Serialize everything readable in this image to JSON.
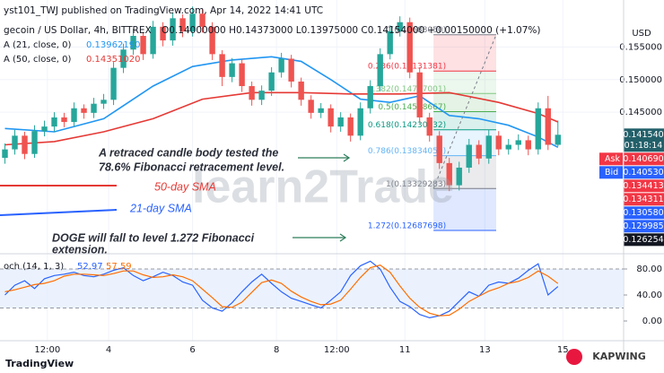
{
  "header": {
    "published": "yst101_TWJ published on TradingView.com, Apr 14, 2022 14:41 UTC",
    "symbol": "gecoin / US Dollar, 4h, BITTREX",
    "ohlc": "O0.14000000  H0.14373000  L0.13975000  C0.14154000  +0.00150000 (+1.07%)"
  },
  "chart_data": [
    {
      "type": "candlestick",
      "axis_unit": "USD",
      "up_color": "#26a69a",
      "down_color": "#ef5350",
      "xlim": [
        -0.5,
        62.2
      ],
      "ylim": [
        0.1233,
        0.1622
      ],
      "yticks": [
        {
          "value": 0.145,
          "label": "0.145000"
        },
        {
          "value": 0.15,
          "label": "0.150000"
        },
        {
          "value": 0.155,
          "label": "0.155000"
        }
      ],
      "xticks": [
        {
          "value": 4.3,
          "label": "12:00"
        },
        {
          "value": 10.5,
          "label": "4"
        },
        {
          "value": 19,
          "label": "6"
        },
        {
          "value": 27.5,
          "label": "8"
        },
        {
          "value": 33.6,
          "label": "12:00"
        },
        {
          "value": 40.5,
          "label": "11"
        },
        {
          "value": 48.6,
          "label": "13"
        },
        {
          "value": 56.5,
          "label": "15"
        }
      ],
      "ohlc": [
        [
          0.138,
          0.1402,
          0.1371,
          0.1393
        ],
        [
          0.1393,
          0.1423,
          0.1385,
          0.1414
        ],
        [
          0.1414,
          0.142,
          0.1378,
          0.1386
        ],
        [
          0.1386,
          0.143,
          0.138,
          0.1421
        ],
        [
          0.1421,
          0.1437,
          0.1413,
          0.1428
        ],
        [
          0.1428,
          0.145,
          0.142,
          0.1442
        ],
        [
          0.1442,
          0.1449,
          0.1427,
          0.1435
        ],
        [
          0.1435,
          0.1465,
          0.1428,
          0.1456
        ],
        [
          0.1456,
          0.1462,
          0.144,
          0.1449
        ],
        [
          0.1449,
          0.1472,
          0.1441,
          0.1463
        ],
        [
          0.1463,
          0.1478,
          0.1455,
          0.1469
        ],
        [
          0.1469,
          0.1527,
          0.1461,
          0.1518
        ],
        [
          0.1518,
          0.1555,
          0.151,
          0.1546
        ],
        [
          0.1546,
          0.1578,
          0.1538,
          0.1567
        ],
        [
          0.1567,
          0.1573,
          0.153,
          0.1539
        ],
        [
          0.1539,
          0.159,
          0.1532,
          0.1581
        ],
        [
          0.1581,
          0.1588,
          0.1551,
          0.156
        ],
        [
          0.156,
          0.1603,
          0.1552,
          0.1594
        ],
        [
          0.1594,
          0.16,
          0.1565,
          0.1574
        ],
        [
          0.1574,
          0.1612,
          0.1566,
          0.1601
        ],
        [
          0.1601,
          0.1608,
          0.1572,
          0.1581
        ],
        [
          0.1581,
          0.1588,
          0.153,
          0.1539
        ],
        [
          0.1539,
          0.1545,
          0.149,
          0.1504
        ],
        [
          0.1504,
          0.1533,
          0.1496,
          0.1525
        ],
        [
          0.1525,
          0.1531,
          0.1481,
          0.149
        ],
        [
          0.149,
          0.1497,
          0.146,
          0.1469
        ],
        [
          0.1469,
          0.1491,
          0.1461,
          0.1483
        ],
        [
          0.1483,
          0.1519,
          0.1475,
          0.1511
        ],
        [
          0.1511,
          0.1541,
          0.1503,
          0.1532
        ],
        [
          0.1532,
          0.1538,
          0.1488,
          0.1497
        ],
        [
          0.1497,
          0.1503,
          0.146,
          0.1469
        ],
        [
          0.1469,
          0.1476,
          0.144,
          0.1449
        ],
        [
          0.1449,
          0.1464,
          0.1441,
          0.1456
        ],
        [
          0.1456,
          0.1462,
          0.1419,
          0.1428
        ],
        [
          0.1428,
          0.145,
          0.142,
          0.1442
        ],
        [
          0.1442,
          0.1448,
          0.1405,
          0.1414
        ],
        [
          0.1414,
          0.1465,
          0.1407,
          0.1456
        ],
        [
          0.1456,
          0.1499,
          0.1448,
          0.149
        ],
        [
          0.149,
          0.1548,
          0.1482,
          0.1539
        ],
        [
          0.1539,
          0.1583,
          0.1531,
          0.1574
        ],
        [
          0.1574,
          0.1597,
          0.1566,
          0.1588
        ],
        [
          0.1588,
          0.1595,
          0.1502,
          0.1511
        ],
        [
          0.1511,
          0.1519,
          0.1433,
          0.1442
        ],
        [
          0.1442,
          0.1449,
          0.1405,
          0.1414
        ],
        [
          0.1414,
          0.1421,
          0.1363,
          0.1372
        ],
        [
          0.1372,
          0.138,
          0.1329,
          0.1338
        ],
        [
          0.1338,
          0.1374,
          0.133,
          0.1365
        ],
        [
          0.1365,
          0.1409,
          0.1357,
          0.14
        ],
        [
          0.14,
          0.1407,
          0.137,
          0.1379
        ],
        [
          0.1379,
          0.1423,
          0.1371,
          0.1414
        ],
        [
          0.1414,
          0.1421,
          0.1384,
          0.1393
        ],
        [
          0.1393,
          0.1409,
          0.1385,
          0.14
        ],
        [
          0.14,
          0.1416,
          0.1392,
          0.1407
        ],
        [
          0.1407,
          0.1414,
          0.1384,
          0.1393
        ],
        [
          0.1393,
          0.1465,
          0.1385,
          0.1456
        ],
        [
          0.1456,
          0.1475,
          0.1392,
          0.14
        ],
        [
          0.14,
          0.14373,
          0.13975,
          0.14154
        ]
      ],
      "overlays": [
        {
          "name": "A (21, close, 0)",
          "legend_value": "0.13962190",
          "color": "#2196f3",
          "x": [
            0,
            5,
            10,
            15,
            19,
            23,
            27,
            30,
            33,
            36,
            39,
            42,
            45,
            48,
            51,
            54,
            56
          ],
          "values": [
            0.1425,
            0.142,
            0.144,
            0.149,
            0.152,
            0.153,
            0.1535,
            0.1528,
            0.15,
            0.147,
            0.1465,
            0.1475,
            0.1445,
            0.144,
            0.143,
            0.1412,
            0.1396219
          ]
        },
        {
          "name": "A (50, close, 0)",
          "legend_value": "0.14351020",
          "color": "#e53935",
          "x": [
            0,
            5,
            10,
            15,
            20,
            25,
            30,
            35,
            40,
            45,
            50,
            54,
            56
          ],
          "values": [
            0.14,
            0.1405,
            0.142,
            0.144,
            0.147,
            0.148,
            0.148,
            0.1478,
            0.1478,
            0.148,
            0.1465,
            0.1448,
            0.1435102
          ]
        }
      ],
      "fib": {
        "x_range": [
          43.4,
          49.75
        ],
        "levels": [
          {
            "value": 0.1568805,
            "label": "0(0.15688050)",
            "color": "#787b86"
          },
          {
            "value": 0.15131381,
            "label": "0.236(0.15131381)",
            "color": "#f23645"
          },
          {
            "value": 0.14787001,
            "label": "0.382(0.14787001)",
            "color": "#81c784"
          },
          {
            "value": 0.14508667,
            "label": "0.5(0.14508667)",
            "color": "#4caf50"
          },
          {
            "value": 0.14230332,
            "label": "0.618(0.14230332)",
            "color": "#089981"
          },
          {
            "value": 0.13834059,
            "label": "0.786(0.13834059)",
            "color": "#64b5f6"
          },
          {
            "value": 0.1332928,
            "label": "1(0.13329283)",
            "color": "#787b86"
          },
          {
            "value": 0.12687698,
            "label": "1.272(0.12687698)",
            "color": "#2962ff"
          }
        ]
      },
      "price_labels": [
        {
          "value": 0.14154,
          "label": "0.141540",
          "color": "#22606a"
        },
        {
          "value": 0.14069,
          "label": "0.140690",
          "color": "#f23645",
          "side_label": "Ask"
        },
        {
          "value": 0.14053,
          "label": "0.140530",
          "color": "#2962ff",
          "side_label": "Bid"
        },
        {
          "value": 0.134413,
          "label": "0.134413",
          "color": "#f23645"
        },
        {
          "value": 0.134311,
          "label": "0.134311",
          "color": "#f23645"
        },
        {
          "value": 0.13058,
          "label": "0.130580",
          "color": "#2962ff"
        },
        {
          "value": 0.129985,
          "label": "0.129985",
          "color": "#2962ff"
        },
        {
          "value": 0.126254,
          "label": "0.126254",
          "color": "#131722"
        }
      ],
      "countdown": "01:18:14"
    },
    {
      "type": "line",
      "title": "och (14, 1, 3)",
      "xlim": [
        -0.5,
        62.2
      ],
      "ylim": [
        -27.6,
        100.7
      ],
      "yticks": [
        {
          "value": 0,
          "label": "0.00"
        },
        {
          "value": 40,
          "label": "40.00"
        },
        {
          "value": 80,
          "label": "80.00"
        }
      ],
      "band": [
        20,
        80
      ],
      "series": [
        {
          "color": "#2962ff",
          "values": [
            40,
            55,
            62,
            50,
            65,
            70,
            72,
            75,
            70,
            68,
            72,
            78,
            82,
            70,
            62,
            68,
            75,
            70,
            60,
            55,
            32,
            20,
            15,
            28,
            45,
            60,
            72,
            58,
            45,
            35,
            30,
            25,
            20,
            32,
            45,
            70,
            85,
            92,
            80,
            52,
            30,
            22,
            10,
            5,
            8,
            15,
            30,
            45,
            38,
            55,
            60,
            58,
            66,
            78,
            88,
            40,
            52.97
          ]
        },
        {
          "color": "#ff6d00",
          "values": [
            45,
            48,
            52,
            56,
            58,
            62,
            69,
            72,
            72,
            71,
            70,
            73,
            77,
            77,
            71,
            67,
            68,
            71,
            68,
            62,
            49,
            36,
            22,
            21,
            29,
            44,
            59,
            63,
            58,
            46,
            37,
            30,
            25,
            26,
            32,
            49,
            67,
            82,
            86,
            75,
            54,
            35,
            21,
            12,
            8,
            9,
            18,
            30,
            38,
            46,
            51,
            58,
            61,
            67,
            77,
            69,
            57.59
          ]
        }
      ]
    }
  ],
  "annotations": {
    "retrace_1": "A retraced candle body tested the",
    "retrace_2": "78.6% Fibonacci retracement level.",
    "sma50": "50-day SMA",
    "sma21": "21-day SMA",
    "doge_1": "DOGE will fall to level 1.272 Fibonacci",
    "doge_2": "extension."
  },
  "watermark": "learn2Trade",
  "footer": {
    "brand": "TradingView",
    "kapwing": "KAPWING"
  }
}
